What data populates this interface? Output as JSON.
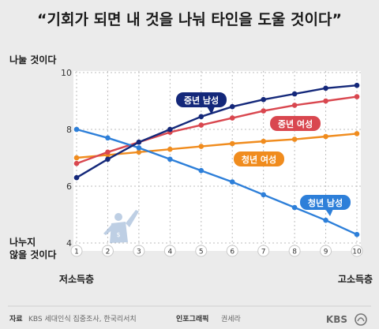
{
  "headline": "“기회가 되면 내 것을 나눠 타인을 도울 것이다”",
  "y_label_top": "나눌 것이다",
  "y_label_bottom_1": "나누지",
  "y_label_bottom_2": "않을 것이다",
  "x_label_left": "저소득층",
  "x_label_right": "고소득층",
  "source_label": "자료",
  "source_text": "KBS 세대인식 집중조사, 한국리서치",
  "infographic_label": "인포그래픽",
  "infographic_author": "권세라",
  "brand": "KBS",
  "colors": {
    "background": "#ebebeb",
    "plot_bg": "#ffffff",
    "midage_male": "#14287a",
    "midage_female": "#d9474f",
    "young_female": "#f08c1e",
    "young_male": "#2d7fd9"
  },
  "chart_data": {
    "type": "line",
    "x": [
      1,
      2,
      3,
      4,
      5,
      6,
      7,
      8,
      9,
      10
    ],
    "xlim": [
      1,
      10
    ],
    "ylim": [
      4,
      10
    ],
    "yticks": [
      4,
      6,
      8,
      10
    ],
    "series": [
      {
        "name": "중년 남성",
        "color": "#14287a",
        "values": [
          6.3,
          6.95,
          7.55,
          8.0,
          8.45,
          8.8,
          9.05,
          9.25,
          9.45,
          9.55
        ]
      },
      {
        "name": "중년 여성",
        "color": "#d9474f",
        "values": [
          6.8,
          7.2,
          7.55,
          7.9,
          8.15,
          8.4,
          8.65,
          8.85,
          9.0,
          9.15
        ]
      },
      {
        "name": "청년 여성",
        "color": "#f08c1e",
        "values": [
          7.0,
          7.1,
          7.2,
          7.3,
          7.4,
          7.5,
          7.58,
          7.65,
          7.75,
          7.85
        ]
      },
      {
        "name": "청년 남성",
        "color": "#2d7fd9",
        "values": [
          8.0,
          7.7,
          7.35,
          6.95,
          6.55,
          6.15,
          5.7,
          5.25,
          4.8,
          4.3
        ]
      }
    ]
  }
}
